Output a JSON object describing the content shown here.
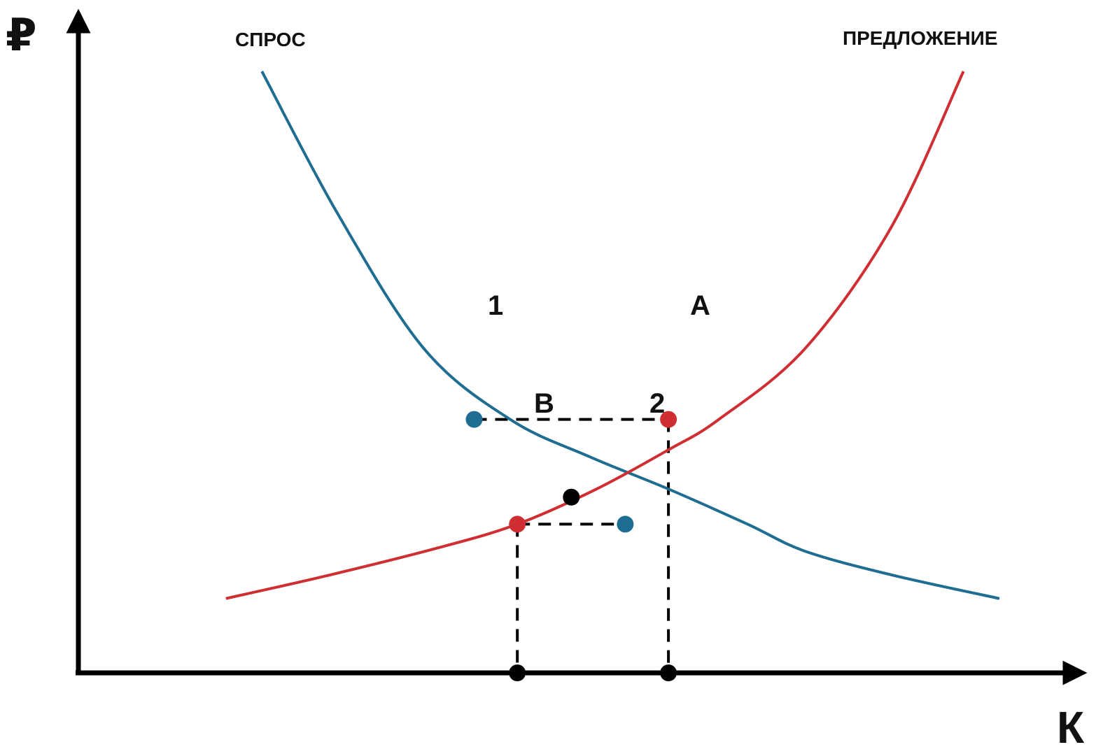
{
  "chart_data": {
    "type": "line",
    "title": "",
    "xlabel": "К",
    "ylabel": "₽",
    "grid": false,
    "axis_ticks": false,
    "series": [
      {
        "name": "СПРОС",
        "color": "#1f6d91",
        "points": [
          [
            2.55,
            8.9
          ],
          [
            3.6,
            6.8
          ],
          [
            4.8,
            4.8
          ],
          [
            6.0,
            3.75
          ],
          [
            7.1,
            3.2
          ],
          [
            8.2,
            2.72
          ],
          [
            9.3,
            2.2
          ],
          [
            10.1,
            1.8
          ],
          [
            11.3,
            1.45
          ],
          [
            12.8,
            1.1
          ]
        ]
      },
      {
        "name": "ПРЕДЛОЖЕНИЕ",
        "color": "#cf2e33",
        "points": [
          [
            2.05,
            1.1
          ],
          [
            3.5,
            1.45
          ],
          [
            5.0,
            1.85
          ],
          [
            6.1,
            2.2
          ],
          [
            7.2,
            2.72
          ],
          [
            8.2,
            3.3
          ],
          [
            8.9,
            3.75
          ],
          [
            10.1,
            4.8
          ],
          [
            11.3,
            6.6
          ],
          [
            12.3,
            8.9
          ]
        ]
      }
    ],
    "points": [
      {
        "label": "1",
        "x": 5.5,
        "y": 3.75,
        "color": "#1f6d91"
      },
      {
        "label": "A",
        "x": 8.2,
        "y": 3.75,
        "color": "#cf2e33"
      },
      {
        "label": "B",
        "x": 6.1,
        "y": 2.2,
        "color": "#cf2e33"
      },
      {
        "label": "2",
        "x": 7.6,
        "y": 2.2,
        "color": "#1f6d91"
      },
      {
        "label": "",
        "x": 6.85,
        "y": 2.6,
        "color": "#000000"
      },
      {
        "label": "",
        "x": 6.1,
        "y": 0,
        "color": "#000000"
      },
      {
        "label": "",
        "x": 8.2,
        "y": 0,
        "color": "#000000"
      }
    ],
    "dashed_guides": [
      {
        "from": [
          5.5,
          3.75
        ],
        "to": [
          8.2,
          3.75
        ]
      },
      {
        "from": [
          8.2,
          3.75
        ],
        "to": [
          8.2,
          0
        ]
      },
      {
        "from": [
          6.1,
          2.2
        ],
        "to": [
          7.6,
          2.2
        ]
      },
      {
        "from": [
          6.1,
          2.2
        ],
        "to": [
          6.1,
          0
        ]
      }
    ],
    "xlim": [
      0,
      13.5
    ],
    "ylim": [
      0,
      9.5
    ]
  }
}
